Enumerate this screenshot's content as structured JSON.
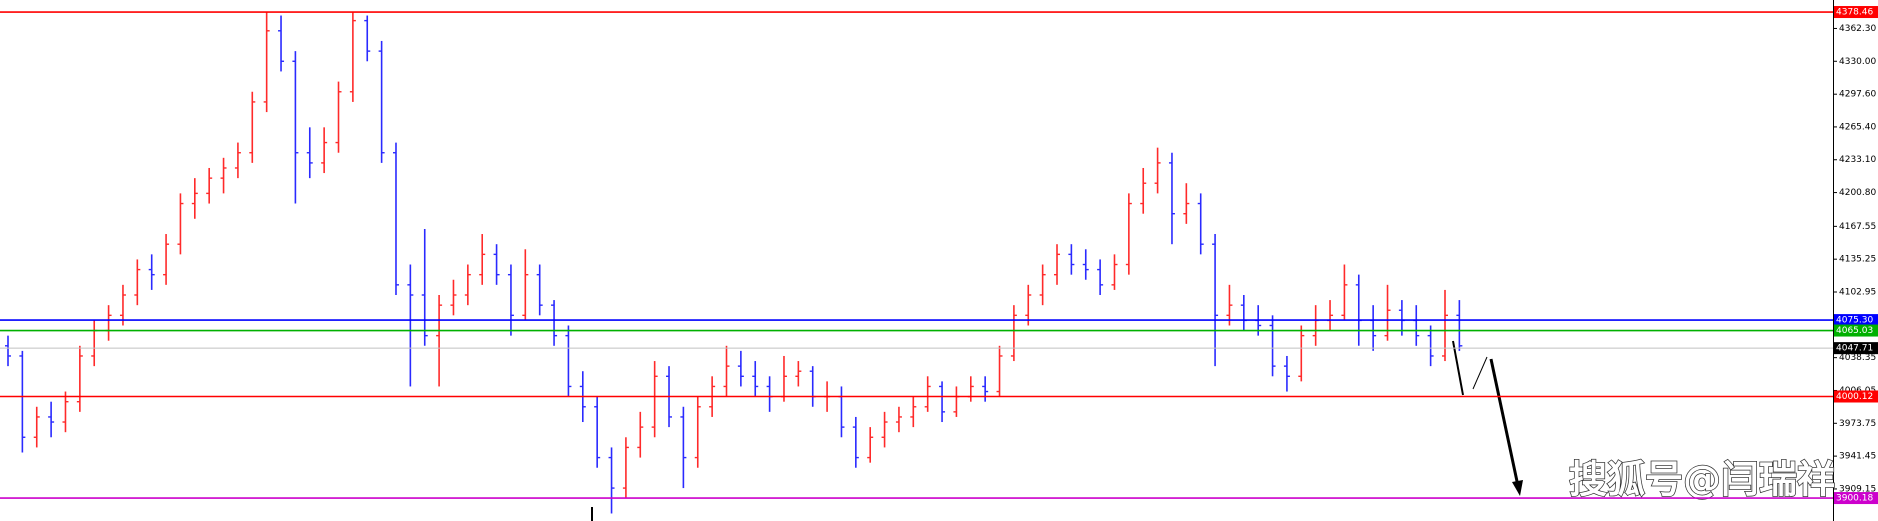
{
  "chart_data": {
    "type": "ohlc",
    "up_color": "#ff2a2a",
    "down_color": "#2a2aff",
    "ylim": [
      3877.6,
      4390.3
    ],
    "yticks": [
      {
        "value": 4362.3,
        "label": "4362.30"
      },
      {
        "value": 4330,
        "label": "4330.00"
      },
      {
        "value": 4297.6,
        "label": "4297.60"
      },
      {
        "value": 4265.4,
        "label": "4265.40"
      },
      {
        "value": 4233.1,
        "label": "4233.10"
      },
      {
        "value": 4200.8,
        "label": "4200.80"
      },
      4167.55,
      4135.25,
      4102.95,
      4038.35,
      4006.05,
      3973.75,
      3941.45,
      3909.15
    ],
    "levels": [
      {
        "price": 4378.46,
        "color": "#ff0000"
      },
      {
        "price": {
          "value": 4075.3,
          "label": "4075.30"
        },
        "color": "#0000ff"
      },
      {
        "price": 4065.03,
        "color": "#00b000"
      },
      {
        "price": 4047.71,
        "color": "#c0c0c0"
      },
      {
        "price": 4000.12,
        "color": "#ff0000"
      },
      {
        "price": 3900.18,
        "color": "#cc00cc"
      }
    ],
    "watermark": "搜狐号@闫瑞祥",
    "ohlc": [
      [
        4050,
        4060,
        4030,
        4040
      ],
      [
        4040,
        4045,
        3945,
        3960
      ],
      [
        3960,
        3990,
        3950,
        3980
      ],
      [
        3980,
        3995,
        3960,
        3975
      ],
      [
        3975,
        4005,
        3965,
        3995
      ],
      [
        3995,
        4050,
        3985,
        4040
      ],
      [
        4040,
        4075,
        4030,
        4065
      ],
      [
        4065,
        4090,
        4055,
        4080
      ],
      [
        4080,
        4110,
        4070,
        4100
      ],
      [
        4100,
        4135,
        4090,
        4125
      ],
      [
        4125,
        4140,
        4105,
        4120
      ],
      [
        4120,
        4160,
        4110,
        4150
      ],
      [
        4150,
        4200,
        4140,
        4190
      ],
      [
        4190,
        4215,
        4175,
        4200
      ],
      [
        4200,
        4225,
        4190,
        4215
      ],
      [
        4215,
        4235,
        4200,
        4225
      ],
      [
        4225,
        4250,
        4215,
        4240
      ],
      [
        4240,
        4300,
        4230,
        4290
      ],
      [
        4290,
        4378,
        4280,
        4360
      ],
      [
        4360,
        4375,
        4320,
        4330
      ],
      [
        4330,
        4340,
        4190,
        4240
      ],
      [
        4240,
        4265,
        4215,
        4230
      ],
      [
        4230,
        4265,
        4220,
        4250
      ],
      [
        4250,
        4310,
        4240,
        4300
      ],
      [
        4300,
        4378,
        4290,
        4370
      ],
      [
        4370,
        4375,
        4330,
        4340
      ],
      [
        4340,
        4350,
        4230,
        4240
      ],
      [
        4240,
        4250,
        4100,
        4110
      ],
      [
        4110,
        4130,
        4010,
        4100
      ],
      [
        4100,
        4165,
        4050,
        4060
      ],
      [
        4060,
        4100,
        4010,
        4090
      ],
      [
        4090,
        4115,
        4080,
        4100
      ],
      [
        4100,
        4130,
        4090,
        4120
      ],
      [
        4120,
        4160,
        4110,
        4140
      ],
      [
        4140,
        4150,
        4110,
        4120
      ],
      [
        4120,
        4130,
        4060,
        4080
      ],
      [
        4080,
        4145,
        4075,
        4120
      ],
      [
        4120,
        4130,
        4080,
        4090
      ],
      [
        4090,
        4095,
        4050,
        4060
      ],
      [
        4060,
        4070,
        4000,
        4010
      ],
      [
        4010,
        4025,
        3975,
        3990
      ],
      [
        3990,
        4000,
        3930,
        3940
      ],
      [
        3940,
        3950,
        3885,
        3910
      ],
      [
        3910,
        3960,
        3900,
        3950
      ],
      [
        3950,
        3985,
        3940,
        3970
      ],
      [
        3970,
        4035,
        3960,
        4020
      ],
      [
        4020,
        4030,
        3970,
        3980
      ],
      [
        3980,
        3990,
        3910,
        3940
      ],
      [
        3940,
        4000,
        3930,
        3990
      ],
      [
        3990,
        4020,
        3980,
        4010
      ],
      [
        4010,
        4050,
        4000,
        4030
      ],
      [
        4030,
        4045,
        4010,
        4020
      ],
      [
        4020,
        4035,
        4000,
        4010
      ],
      [
        4010,
        4020,
        3985,
        4000
      ],
      [
        4000,
        4040,
        3995,
        4020
      ],
      [
        4020,
        4035,
        4010,
        4025
      ],
      [
        4025,
        4030,
        3990,
        4000
      ],
      [
        4000,
        4015,
        3985,
        4000
      ],
      [
        4000,
        4010,
        3960,
        3970
      ],
      [
        3970,
        3980,
        3930,
        3940
      ],
      [
        3940,
        3970,
        3935,
        3960
      ],
      [
        3960,
        3985,
        3950,
        3975
      ],
      [
        3975,
        3990,
        3965,
        3980
      ],
      [
        3980,
        4000,
        3970,
        3990
      ],
      [
        3990,
        4020,
        3985,
        4010
      ],
      [
        4010,
        4015,
        3975,
        3985
      ],
      [
        3985,
        4010,
        3980,
        4000
      ],
      [
        4000,
        4020,
        3995,
        4010
      ],
      [
        4010,
        4020,
        3995,
        4005
      ],
      [
        4005,
        4050,
        4000,
        4040
      ],
      [
        4040,
        4090,
        4035,
        4080
      ],
      [
        4080,
        4110,
        4070,
        4100
      ],
      [
        4100,
        4130,
        4090,
        4120
      ],
      [
        4120,
        4150,
        4110,
        4140
      ],
      [
        4140,
        4150,
        4120,
        4130
      ],
      [
        4130,
        4145,
        4115,
        4125
      ],
      [
        4125,
        4135,
        4100,
        4110
      ],
      [
        4110,
        4140,
        4105,
        4130
      ],
      [
        4130,
        4200,
        4120,
        4190
      ],
      [
        4190,
        4225,
        4180,
        4210
      ],
      [
        4210,
        4245,
        4200,
        4230
      ],
      [
        4230,
        4240,
        4150,
        4180
      ],
      [
        4180,
        4210,
        4170,
        4190
      ],
      [
        4190,
        4200,
        4140,
        4150
      ],
      [
        4150,
        4160,
        4030,
        4080
      ],
      [
        4080,
        4110,
        4070,
        4090
      ],
      [
        4090,
        4100,
        4065,
        4075
      ],
      [
        4075,
        4090,
        4060,
        4070
      ],
      [
        4070,
        4080,
        4020,
        4030
      ],
      [
        4030,
        4040,
        4005,
        4020
      ],
      [
        4020,
        4070,
        4015,
        4060
      ],
      [
        4060,
        4090,
        4050,
        4075
      ],
      [
        4075,
        4095,
        4065,
        4080
      ],
      [
        4080,
        4130,
        4075,
        4110
      ],
      [
        4110,
        4120,
        4050,
        4075
      ],
      [
        4075,
        4090,
        4045,
        4060
      ],
      [
        4060,
        4110,
        4055,
        4085
      ],
      [
        4085,
        4095,
        4060,
        4075
      ],
      [
        4075,
        4090,
        4050,
        4060
      ],
      [
        4060,
        4070,
        4030,
        4040
      ],
      [
        4040,
        4105,
        4035,
        4080
      ],
      [
        4080,
        4095,
        4045,
        4050
      ]
    ]
  }
}
